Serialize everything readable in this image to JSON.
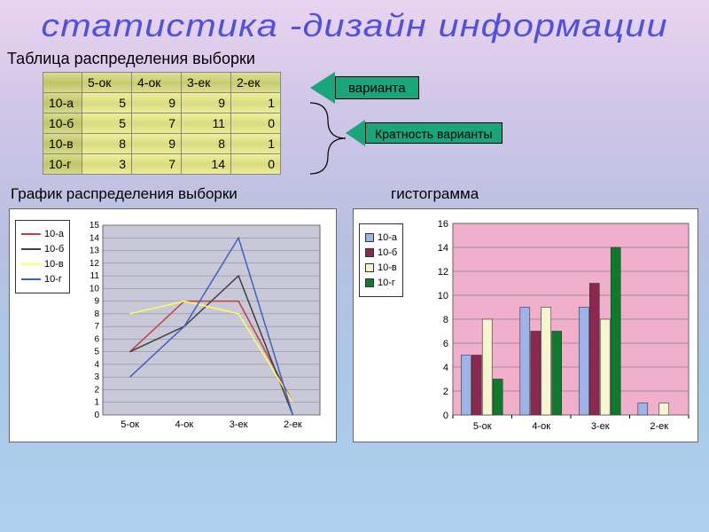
{
  "title": "статистика -дизайн информации",
  "table": {
    "title": "Таблица распределения выборки",
    "columns": [
      "5-ок",
      "4-ок",
      "3-ек",
      "2-ек"
    ],
    "rows": [
      {
        "label": "10-а",
        "vals": [
          5,
          9,
          9,
          1
        ]
      },
      {
        "label": "10-б",
        "vals": [
          5,
          7,
          11,
          0
        ]
      },
      {
        "label": "10-в",
        "vals": [
          8,
          9,
          8,
          1
        ]
      },
      {
        "label": "10-г",
        "vals": [
          3,
          7,
          14,
          0
        ]
      }
    ]
  },
  "arrows": {
    "arrow1": "варианта",
    "arrow2": "Кратность варианты",
    "arrow_fill": "#1aa57a"
  },
  "line_chart": {
    "title": "График распределения выборки",
    "categories": [
      "5-ок",
      "4-ок",
      "3-ек",
      "2-ек"
    ],
    "series": [
      {
        "name": "10-а",
        "color": "#c04040",
        "values": [
          5,
          9,
          9,
          1
        ]
      },
      {
        "name": "10-б",
        "color": "#404040",
        "values": [
          5,
          7,
          11,
          0
        ]
      },
      {
        "name": "10-в",
        "color": "#ffff60",
        "values": [
          8,
          9,
          8,
          1
        ]
      },
      {
        "name": "10-г",
        "color": "#4060c0",
        "values": [
          3,
          7,
          14,
          0
        ]
      }
    ],
    "ylim": [
      0,
      15
    ],
    "ytick_step": 1,
    "plot_bg": "#c8c8d8",
    "grid_color": "#808080",
    "line_width": 1.5,
    "legend_pos": "left"
  },
  "bar_chart": {
    "title": "гистограмма",
    "categories": [
      "5-ок",
      "4-ок",
      "3-ек",
      "2-ек"
    ],
    "series": [
      {
        "name": "10-а",
        "color": "#9db4e8",
        "values": [
          5,
          9,
          9,
          1
        ]
      },
      {
        "name": "10-б",
        "color": "#8a2850",
        "values": [
          5,
          7,
          11,
          0
        ]
      },
      {
        "name": "10-в",
        "color": "#f5f5d0",
        "values": [
          8,
          9,
          8,
          1
        ]
      },
      {
        "name": "10-г",
        "color": "#0e7a2e",
        "values": [
          3,
          7,
          14,
          0
        ]
      }
    ],
    "ylim": [
      0,
      16
    ],
    "ytick_step": 2,
    "plot_bg": "#f0b0cc",
    "grid_color": "#606060",
    "bar_group_width": 0.72,
    "legend_pos": "left"
  }
}
